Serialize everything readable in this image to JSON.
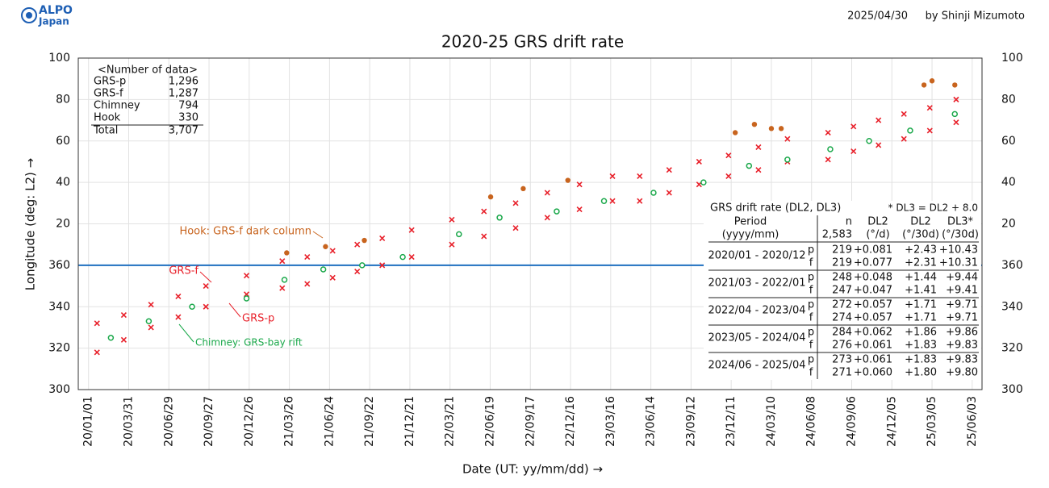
{
  "header": {
    "logo": [
      "ALPO",
      "Japan"
    ],
    "date": "2025/04/30",
    "author": "by Shinji Mizumoto"
  },
  "chart_data": {
    "type": "scatter",
    "title": "2020-25 GRS drift rate",
    "x_label": "Date (UT: yy/mm/dd) →",
    "y_label": "Longitude (deg: L2) →",
    "xlim": [
      "2019-12-09",
      "2025-06-25"
    ],
    "xticks": [
      {
        "value": "2020-01-01",
        "label": "20/01/01"
      },
      {
        "value": "2020-03-31",
        "label": "20/03/31"
      },
      {
        "value": "2020-06-29",
        "label": "20/06/29"
      },
      {
        "value": "2020-09-27",
        "label": "20/09/27"
      },
      {
        "value": "2020-12-26",
        "label": "20/12/26"
      },
      {
        "value": "2021-03-26",
        "label": "21/03/26"
      },
      {
        "value": "2021-06-24",
        "label": "21/06/24"
      },
      {
        "value": "2021-09-22",
        "label": "21/09/22"
      },
      {
        "value": "2021-12-21",
        "label": "21/12/21"
      },
      {
        "value": "2022-03-21",
        "label": "22/03/21"
      },
      {
        "value": "2022-06-19",
        "label": "22/06/19"
      },
      {
        "value": "2022-09-17",
        "label": "22/09/17"
      },
      {
        "value": "2022-12-16",
        "label": "22/12/16"
      },
      {
        "value": "2023-03-16",
        "label": "23/03/16"
      },
      {
        "value": "2023-06-14",
        "label": "23/06/14"
      },
      {
        "value": "2023-09-12",
        "label": "23/09/12"
      },
      {
        "value": "2023-12-11",
        "label": "23/12/11"
      },
      {
        "value": "2024-03-10",
        "label": "24/03/10"
      },
      {
        "value": "2024-06-08",
        "label": "24/06/08"
      },
      {
        "value": "2024-09-06",
        "label": "24/09/06"
      },
      {
        "value": "2024-12-05",
        "label": "24/12/05"
      },
      {
        "value": "2025-03-05",
        "label": "25/03/05"
      },
      {
        "value": "2025-06-03",
        "label": "25/06/03"
      }
    ],
    "ylim": [
      300,
      460
    ],
    "yticks": [
      300,
      320,
      340,
      360,
      {
        "value": 380,
        "label": "20"
      },
      {
        "value": 400,
        "label": "40"
      },
      {
        "value": 420,
        "label": "60"
      },
      {
        "value": 440,
        "label": "80"
      },
      {
        "value": 460,
        "label": "100"
      }
    ],
    "grid": true,
    "reference_line": {
      "value": 360,
      "color": "#1f6fc0"
    },
    "series": [
      {
        "name": "GRS-f",
        "color": "#e8202a",
        "marker": "cross",
        "x": [
          "2020-01-20",
          "2020-03-20",
          "2020-05-20",
          "2020-07-20",
          "2020-09-20",
          "2020-12-20",
          "2021-03-10",
          "2021-05-05",
          "2021-07-01",
          "2021-08-25",
          "2021-10-20",
          "2021-12-25",
          "2022-03-25",
          "2022-06-05",
          "2022-08-15",
          "2022-10-25",
          "2023-01-05",
          "2023-03-20",
          "2023-05-20",
          "2023-07-25",
          "2023-09-30",
          "2023-12-05",
          "2024-02-10",
          "2024-04-15",
          "2024-07-15",
          "2024-09-10",
          "2024-11-05",
          "2025-01-01",
          "2025-02-28",
          "2025-04-28"
        ],
        "values": [
          332,
          336,
          341,
          345,
          350,
          355,
          362,
          364,
          367,
          370,
          373,
          377,
          382,
          386,
          390,
          395,
          399,
          403,
          403,
          406,
          410,
          413,
          417,
          421,
          424,
          427,
          430,
          433,
          436,
          440
        ]
      },
      {
        "name": "GRS-p",
        "color": "#e8202a",
        "marker": "cross",
        "x": [
          "2020-01-20",
          "2020-03-20",
          "2020-05-20",
          "2020-07-20",
          "2020-09-20",
          "2020-12-20",
          "2021-03-10",
          "2021-05-05",
          "2021-07-01",
          "2021-08-25",
          "2021-10-20",
          "2021-12-25",
          "2022-03-25",
          "2022-06-05",
          "2022-08-15",
          "2022-10-25",
          "2023-01-05",
          "2023-03-20",
          "2023-05-20",
          "2023-07-25",
          "2023-09-30",
          "2023-12-05",
          "2024-02-10",
          "2024-04-15",
          "2024-07-15",
          "2024-09-10",
          "2024-11-05",
          "2025-01-01",
          "2025-02-28",
          "2025-04-28"
        ],
        "values": [
          318,
          324,
          330,
          335,
          340,
          346,
          349,
          351,
          354,
          357,
          360,
          364,
          370,
          374,
          378,
          383,
          387,
          391,
          391,
          395,
          399,
          403,
          406,
          410,
          411,
          415,
          418,
          421,
          425,
          429
        ]
      },
      {
        "name": "Chimney",
        "color": "#1aa84a",
        "marker": "ring",
        "x": [
          "2020-02-20",
          "2020-05-15",
          "2020-08-20",
          "2020-12-20",
          "2021-03-15",
          "2021-06-10",
          "2021-09-05",
          "2021-12-05",
          "2022-04-10",
          "2022-07-10",
          "2022-11-15",
          "2023-03-01",
          "2023-06-20",
          "2023-10-10",
          "2024-01-20",
          "2024-04-15",
          "2024-07-20",
          "2024-10-15",
          "2025-01-15",
          "2025-04-25"
        ],
        "values": [
          325,
          333,
          340,
          344,
          353,
          358,
          360,
          364,
          375,
          383,
          386,
          391,
          395,
          400,
          408,
          411,
          416,
          420,
          425,
          433
        ]
      },
      {
        "name": "Hook",
        "color": "#c8641e",
        "marker": "dot",
        "x": [
          "2021-03-20",
          "2021-06-15",
          "2021-09-10",
          "2022-06-20",
          "2022-09-01",
          "2022-12-10",
          "2023-12-20",
          "2024-02-01",
          "2024-03-10",
          "2024-04-01",
          "2025-02-15",
          "2025-03-05",
          "2025-04-25"
        ],
        "values": [
          366,
          369,
          372,
          393,
          397,
          401,
          424,
          428,
          426,
          426,
          447,
          449,
          447
        ]
      }
    ],
    "annotations": [
      "Hook: GRS-f dark column",
      "GRS-f",
      "GRS-p",
      "Chimney: GRS-bay rift"
    ],
    "count_table": {
      "title": "<Number of data>",
      "rows": [
        [
          "GRS-p",
          "1,296"
        ],
        [
          "GRS-f",
          "1,287"
        ],
        [
          "Chimney",
          "794"
        ],
        [
          "Hook",
          "330"
        ]
      ],
      "total": [
        "Total",
        "3,707"
      ]
    },
    "drift_table": {
      "title": "GRS drift rate (DL2, DL3)",
      "note": "* DL3 = DL2 + 8.0",
      "header": [
        [
          "Period",
          "n",
          "DL2",
          "DL2",
          "DL3*"
        ],
        [
          "(yyyy/mm)",
          "2,583",
          "(°/d)",
          "(°/30d)",
          "(°/30d)"
        ]
      ],
      "groups": [
        {
          "period": "2020/01 - 2020/12",
          "rows": [
            [
              "p",
              "219",
              "+0.081",
              "+2.43",
              "+10.43"
            ],
            [
              "f",
              "219",
              "+0.077",
              "+2.31",
              "+10.31"
            ]
          ]
        },
        {
          "period": "2021/03 - 2022/01",
          "rows": [
            [
              "p",
              "248",
              "+0.048",
              "+1.44",
              "+9.44"
            ],
            [
              "f",
              "247",
              "+0.047",
              "+1.41",
              "+9.41"
            ]
          ]
        },
        {
          "period": "2022/04 - 2023/04",
          "rows": [
            [
              "p",
              "272",
              "+0.057",
              "+1.71",
              "+9.71"
            ],
            [
              "f",
              "274",
              "+0.057",
              "+1.71",
              "+9.71"
            ]
          ]
        },
        {
          "period": "2023/05 - 2024/04",
          "rows": [
            [
              "p",
              "284",
              "+0.062",
              "+1.86",
              "+9.86"
            ],
            [
              "f",
              "276",
              "+0.061",
              "+1.83",
              "+9.83"
            ]
          ]
        },
        {
          "period": "2024/06 - 2025/04",
          "rows": [
            [
              "p",
              "273",
              "+0.061",
              "+1.83",
              "+9.83"
            ],
            [
              "f",
              "271",
              "+0.060",
              "+1.80",
              "+9.80"
            ]
          ]
        }
      ]
    }
  }
}
